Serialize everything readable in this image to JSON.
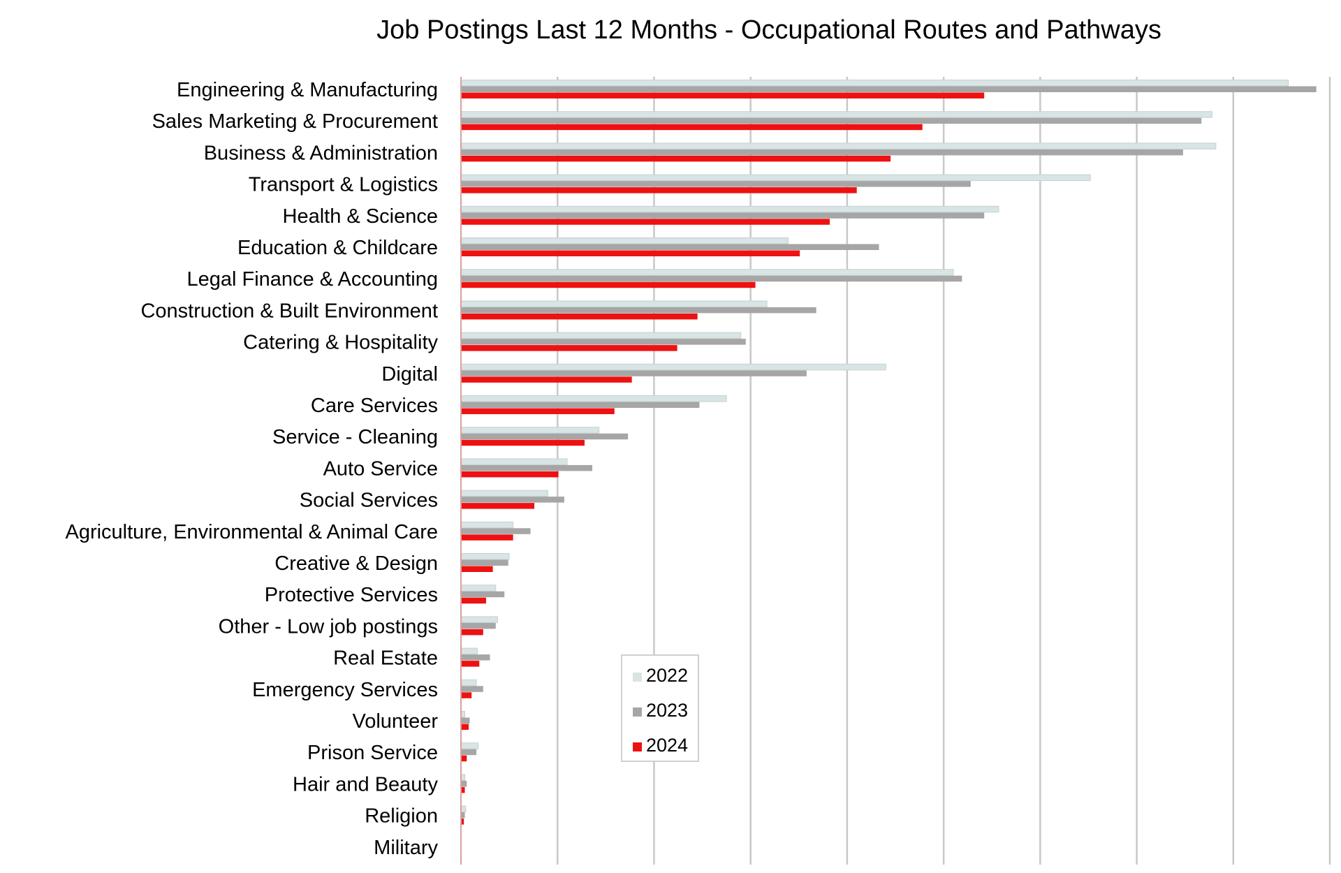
{
  "chart_data": {
    "type": "bar",
    "orientation": "horizontal",
    "title": "Job Postings Last 12 Months - Occupational Routes and Pathways",
    "xlabel": "",
    "ylabel": "",
    "xlim": [
      0,
      90
    ],
    "x_tick_step": 10,
    "grid": true,
    "legend_position": "bottom-center",
    "categories": [
      "Engineering & Manufacturing",
      "Sales Marketing & Procurement",
      "Business & Administration",
      "Transport & Logistics",
      "Health & Science",
      "Education & Childcare",
      "Legal Finance & Accounting",
      "Construction & Built Environment",
      "Catering & Hospitality",
      "Digital",
      "Care Services",
      "Service - Cleaning",
      "Auto Service",
      "Social Services",
      "Agriculture, Environmental & Animal Care",
      "Creative & Design",
      "Protective Services",
      "Other - Low job postings",
      "Real Estate",
      "Emergency Services",
      "Volunteer",
      "Prison Service",
      "Hair and Beauty",
      "Religion",
      "Military"
    ],
    "series": [
      {
        "name": "2022",
        "color": "#d9e4e4",
        "values": [
          85.7,
          77.8,
          78.2,
          65.2,
          55.7,
          33.9,
          51.0,
          31.7,
          29.0,
          44.0,
          27.5,
          14.3,
          11.0,
          9.0,
          5.4,
          5.0,
          3.6,
          3.8,
          1.7,
          1.6,
          0.4,
          1.8,
          0.4,
          0.5,
          0
        ]
      },
      {
        "name": "2023",
        "color": "#a6a6a6",
        "values": [
          88.6,
          76.7,
          74.8,
          52.8,
          54.2,
          43.3,
          51.9,
          36.8,
          29.5,
          35.8,
          24.7,
          17.3,
          13.6,
          10.7,
          7.2,
          4.9,
          4.5,
          3.6,
          3.0,
          2.3,
          0.9,
          1.6,
          0.6,
          0.4,
          0
        ]
      },
      {
        "name": "2024",
        "color": "#ee1111",
        "values": [
          54.2,
          47.8,
          44.5,
          41.0,
          38.2,
          35.1,
          30.5,
          24.5,
          22.4,
          17.7,
          15.9,
          12.8,
          10.1,
          7.6,
          5.4,
          3.3,
          2.6,
          2.3,
          1.9,
          1.1,
          0.8,
          0.6,
          0.4,
          0.3,
          0
        ]
      }
    ]
  }
}
